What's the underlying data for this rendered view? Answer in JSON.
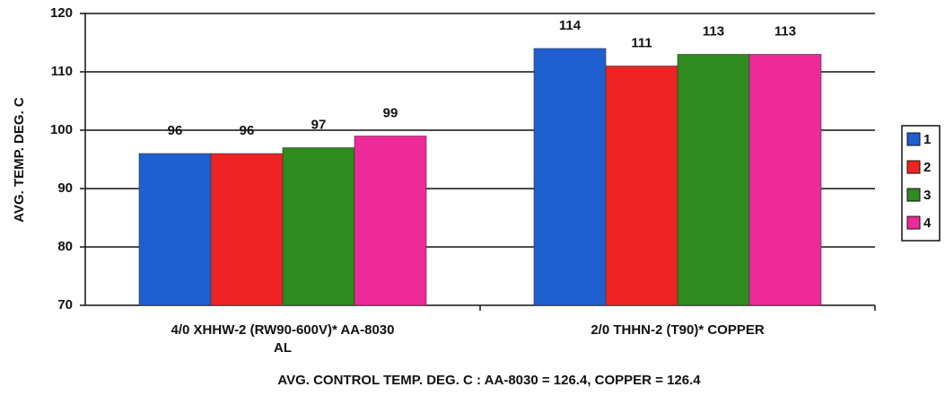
{
  "chart_data": {
    "type": "bar",
    "y_label": "AVG. TEMP. DEG. C",
    "x_label": "AVG. CONTROL TEMP. DEG. C : AA-8030 = 126.4, COPPER = 126.4",
    "categories": [
      "4/0 XHHW-2 (RW90-600V)* AA-8030 AL",
      "2/0 THHN-2 (T90)* COPPER"
    ],
    "series": [
      {
        "name": "1",
        "color": "#1f5fd0",
        "values": [
          96,
          114
        ]
      },
      {
        "name": "2",
        "color": "#ee2424",
        "values": [
          96,
          111
        ]
      },
      {
        "name": "3",
        "color": "#2f8a1f",
        "values": [
          97,
          113
        ]
      },
      {
        "name": "4",
        "color": "#ee2a98",
        "values": [
          99,
          113
        ]
      }
    ],
    "ylim": [
      70,
      120
    ],
    "yticks": [
      70,
      80,
      90,
      100,
      110,
      120
    ],
    "grid": true,
    "legend": "right"
  }
}
